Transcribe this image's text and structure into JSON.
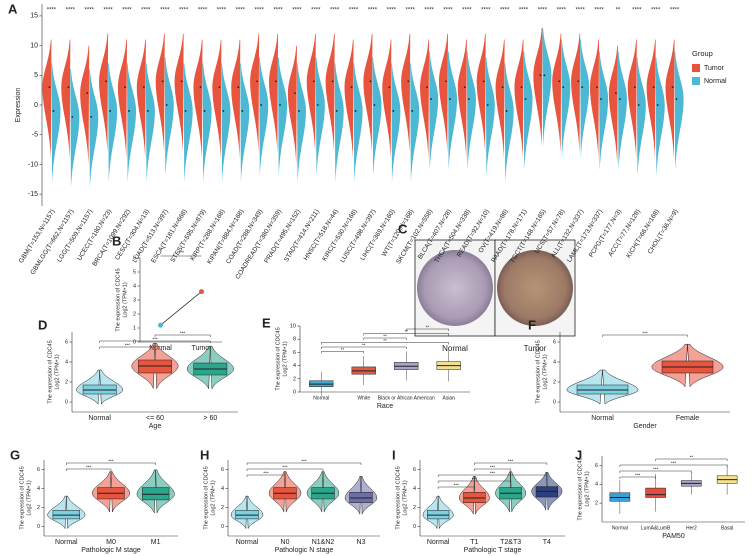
{
  "chart_data": [
    {
      "panel": "A",
      "type": "split-violin",
      "ylabel": "Expression",
      "categories": [
        "GBM(T=153,N=1157)",
        "GBMLGG(T=662,N=1157)",
        "LGG(T=509,N=1157)",
        "UCEC(T=180,N=23)",
        "BRCA(T=1099,N=292)",
        "CESC(T=304,N=13)",
        "LUAD(T=513,N=397)",
        "ESCA(T=181,N=668)",
        "STES(T=595,N=879)",
        "KIRP(T=288,N=168)",
        "KIPAN(T=884,N=168)",
        "COAD(T=288,N=349)",
        "COADREAD(T=380,N=359)",
        "PRAD(T=495,N=152)",
        "STAD(T=414,N=211)",
        "HNSC(T=518,N=44)",
        "KIRC(T=530,N=168)",
        "LUSC(T=498,N=397)",
        "LIHC(T=369,N=160)",
        "WT(T=120,N=168)",
        "SKCM(T=102,N=558)",
        "BLCA(T=407,N=28)",
        "THCA(T=504,N=338)",
        "READ(T=92,N=10)",
        "OV(T=419,N=88)",
        "PAAD(T=178,N=171)",
        "TGCT(T=148,N=165)",
        "UCS(T=57,N=78)",
        "ALL(T=132,N=337)",
        "LAML(T=173,N=337)",
        "PCPG(T=177,N=3)",
        "ACC(T=77,N=128)",
        "KICH(T=66,N=168)",
        "CHOL(T=36,N=9)"
      ],
      "series": [
        {
          "name": "Tumor",
          "color": "#e8553f",
          "values": [
            3,
            3,
            2,
            4,
            3,
            3,
            4,
            4,
            3,
            3,
            3,
            4,
            4,
            2,
            4,
            4,
            3,
            4,
            3,
            4,
            3,
            4,
            3,
            4,
            3,
            3,
            5,
            4,
            4,
            3,
            2,
            3,
            3,
            3
          ]
        },
        {
          "name": "Normal",
          "color": "#4cb8d4",
          "values": [
            -1,
            -2,
            -2,
            -1,
            -1,
            -1,
            0,
            -1,
            -1,
            -1,
            -1,
            0,
            0,
            -1,
            0,
            -1,
            -1,
            0,
            -1,
            -1,
            1,
            1,
            1,
            0,
            -1,
            1,
            5,
            3,
            3,
            1,
            1,
            0,
            0,
            1
          ]
        }
      ],
      "significance": [
        "****",
        "****",
        "****",
        "****",
        "****",
        "****",
        "****",
        "****",
        "****",
        "****",
        "****",
        "****",
        "****",
        "****",
        "****",
        "****",
        "****",
        "****",
        "****",
        "****",
        "****",
        "****",
        "****",
        "****",
        "****",
        "****",
        "****",
        "****",
        "****",
        "****",
        "**",
        "****",
        "****",
        "****"
      ],
      "ylim": [
        -17,
        17
      ],
      "yticks": [
        -15,
        -10,
        -5,
        0,
        5,
        10,
        15
      ],
      "legend_title": "Group"
    },
    {
      "panel": "B",
      "type": "paired",
      "ylabel": [
        "The expression of CDC45",
        "Log2 (TPM+1)"
      ],
      "categories": [
        "Normal",
        "Tumor"
      ],
      "values": [
        1.2,
        3.6
      ],
      "colors": [
        "#4cb8d4",
        "#e8553f"
      ],
      "significance": [
        "***"
      ],
      "ylim": [
        0,
        6
      ],
      "yticks": [
        0,
        1,
        2,
        3,
        4,
        5,
        6
      ]
    },
    {
      "panel": "D",
      "type": "violin-box",
      "ylabel": [
        "The expression of CDC45",
        "Log2 (TPM+1)"
      ],
      "xlabel": "Age",
      "categories": [
        "Normal",
        "<= 60",
        "> 60"
      ],
      "values": [
        1.2,
        3.6,
        3.3
      ],
      "q1": [
        0.8,
        2.9,
        2.7
      ],
      "q3": [
        1.7,
        4.2,
        3.9
      ],
      "colors": [
        "#7ecfe0",
        "#e8553f",
        "#2ca58d"
      ],
      "significance": [
        "***",
        "***",
        "***"
      ],
      "ylim": [
        -1,
        7
      ],
      "yticks": [
        0,
        2,
        4,
        6
      ]
    },
    {
      "panel": "E",
      "type": "box",
      "ylabel": [
        "The expression of CDC45",
        "Log2 (TPM+1)"
      ],
      "xlabel": "Race",
      "categories": [
        "Normal",
        "White",
        "Black or African American",
        "Asian"
      ],
      "values": [
        1.2,
        3.2,
        3.9,
        4.0
      ],
      "q1": [
        0.8,
        2.7,
        3.4,
        3.4
      ],
      "q3": [
        1.7,
        3.8,
        4.5,
        4.6
      ],
      "colors": [
        "#3fa9d6",
        "#e05a48",
        "#a9a3c9",
        "#f3e08f"
      ],
      "significance": [
        "**",
        "**",
        "**",
        "**",
        "**",
        "**"
      ],
      "ylim": [
        0,
        10
      ],
      "yticks": [
        0,
        2,
        4,
        6,
        8,
        10
      ]
    },
    {
      "panel": "F",
      "type": "violin-box",
      "ylabel": [
        "The expression of CDC45",
        "Log2 (TPM+1)"
      ],
      "xlabel": "Gender",
      "categories": [
        "Normal",
        "Female"
      ],
      "values": [
        1.2,
        3.5
      ],
      "q1": [
        0.8,
        2.9
      ],
      "q3": [
        1.7,
        4.1
      ],
      "colors": [
        "#7ecfe0",
        "#e8553f"
      ],
      "significance": [
        "***"
      ],
      "ylim": [
        -1,
        7
      ],
      "yticks": [
        0,
        2,
        4,
        6
      ]
    },
    {
      "panel": "G",
      "type": "violin-box",
      "ylabel": [
        "The expression of CDC45",
        "Log2 (TPM+1)"
      ],
      "xlabel": "Pathologic M stage",
      "categories": [
        "Normal",
        "M0",
        "M1"
      ],
      "values": [
        1.2,
        3.5,
        3.4
      ],
      "q1": [
        0.8,
        2.9,
        2.8
      ],
      "q3": [
        1.7,
        4.1,
        4.1
      ],
      "colors": [
        "#7ecfe0",
        "#e8553f",
        "#2ca58d"
      ],
      "significance": [
        "***",
        "***"
      ],
      "ylim": [
        -1,
        7
      ],
      "yticks": [
        0,
        2,
        4,
        6
      ]
    },
    {
      "panel": "H",
      "type": "violin-box",
      "ylabel": [
        "The expression of CDC45",
        "Log2 (TPM+1)"
      ],
      "xlabel": "Pathologic N stage",
      "categories": [
        "Normal",
        "N0",
        "N1&N2",
        "N3"
      ],
      "values": [
        1.2,
        3.5,
        3.5,
        3.0
      ],
      "q1": [
        0.8,
        2.9,
        2.9,
        2.5
      ],
      "q3": [
        1.7,
        4.1,
        4.1,
        3.6
      ],
      "colors": [
        "#7ecfe0",
        "#e8553f",
        "#2ca58d",
        "#6d6da8"
      ],
      "significance": [
        "***",
        "***",
        "***"
      ],
      "ylim": [
        -1,
        7
      ],
      "yticks": [
        0,
        2,
        4,
        6
      ]
    },
    {
      "panel": "I",
      "type": "violin-box",
      "ylabel": [
        "The expression of CDC45",
        "Log2 (TPM+1)"
      ],
      "xlabel": "Pathologic T stage",
      "categories": [
        "Normal",
        "T1",
        "T2&T3",
        "T4"
      ],
      "values": [
        1.2,
        3.0,
        3.5,
        3.7
      ],
      "q1": [
        0.8,
        2.5,
        2.9,
        3.1
      ],
      "q3": [
        1.7,
        3.6,
        4.1,
        4.2
      ],
      "colors": [
        "#7ecfe0",
        "#e8553f",
        "#2ca58d",
        "#2e3f7f"
      ],
      "significance": [
        "***",
        "***",
        "***",
        "***",
        "***"
      ],
      "ylim": [
        -1,
        7
      ],
      "yticks": [
        0,
        2,
        4,
        6
      ]
    },
    {
      "panel": "J",
      "type": "box",
      "ylabel": [
        "The expression of CDC45",
        "Log2 (TPM+1)"
      ],
      "xlabel": "PAM50",
      "categories": [
        "Normal",
        "LumA&LumB",
        "Her2",
        "Basal"
      ],
      "values": [
        2.6,
        2.9,
        4.1,
        4.5
      ],
      "q1": [
        2.2,
        2.6,
        3.8,
        4.1
      ],
      "q3": [
        3.1,
        3.6,
        4.4,
        4.9
      ],
      "colors": [
        "#3aa0d8",
        "#e44c3b",
        "#a8a2cc",
        "#f6e28d"
      ],
      "significance": [
        "***",
        "***",
        "***",
        "**"
      ],
      "ylim": [
        0,
        7
      ],
      "yticks": [
        2,
        4,
        6
      ]
    }
  ],
  "panel_c": {
    "label": "C",
    "captions": [
      "Normal",
      "Tumor"
    ]
  }
}
